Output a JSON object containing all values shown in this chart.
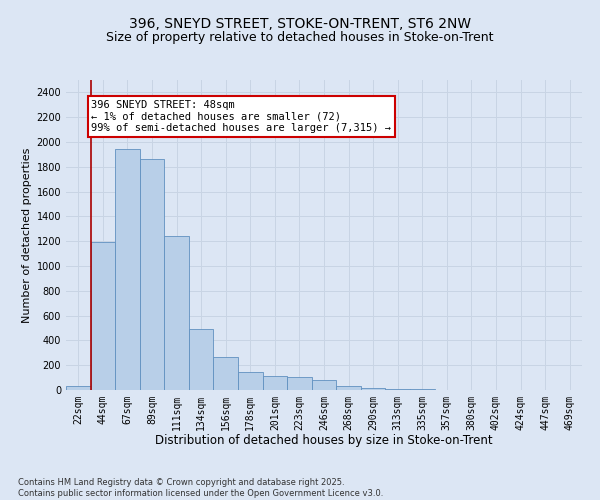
{
  "title": "396, SNEYD STREET, STOKE-ON-TRENT, ST6 2NW",
  "subtitle": "Size of property relative to detached houses in Stoke-on-Trent",
  "xlabel": "Distribution of detached houses by size in Stoke-on-Trent",
  "ylabel": "Number of detached properties",
  "categories": [
    "22sqm",
    "44sqm",
    "67sqm",
    "89sqm",
    "111sqm",
    "134sqm",
    "156sqm",
    "178sqm",
    "201sqm",
    "223sqm",
    "246sqm",
    "268sqm",
    "290sqm",
    "313sqm",
    "335sqm",
    "357sqm",
    "380sqm",
    "402sqm",
    "424sqm",
    "447sqm",
    "469sqm"
  ],
  "values": [
    30,
    1190,
    1940,
    1860,
    1240,
    490,
    270,
    145,
    110,
    105,
    80,
    35,
    20,
    10,
    5,
    3,
    2,
    1,
    1,
    1,
    1
  ],
  "bar_color": "#b8cfe8",
  "bar_edge_color": "#6090c0",
  "red_line_x": 0,
  "annotation_text": "396 SNEYD STREET: 48sqm\n← 1% of detached houses are smaller (72)\n99% of semi-detached houses are larger (7,315) →",
  "annotation_box_color": "#ffffff",
  "annotation_box_edge_color": "#cc0000",
  "red_line_color": "#aa0000",
  "grid_color": "#c8d4e4",
  "background_color": "#dce6f4",
  "ylim": [
    0,
    2500
  ],
  "yticks": [
    0,
    200,
    400,
    600,
    800,
    1000,
    1200,
    1400,
    1600,
    1800,
    2000,
    2200,
    2400
  ],
  "footnote": "Contains HM Land Registry data © Crown copyright and database right 2025.\nContains public sector information licensed under the Open Government Licence v3.0.",
  "title_fontsize": 10,
  "subtitle_fontsize": 9,
  "xlabel_fontsize": 8.5,
  "ylabel_fontsize": 8,
  "tick_fontsize": 7,
  "annotation_fontsize": 7.5,
  "footnote_fontsize": 6
}
